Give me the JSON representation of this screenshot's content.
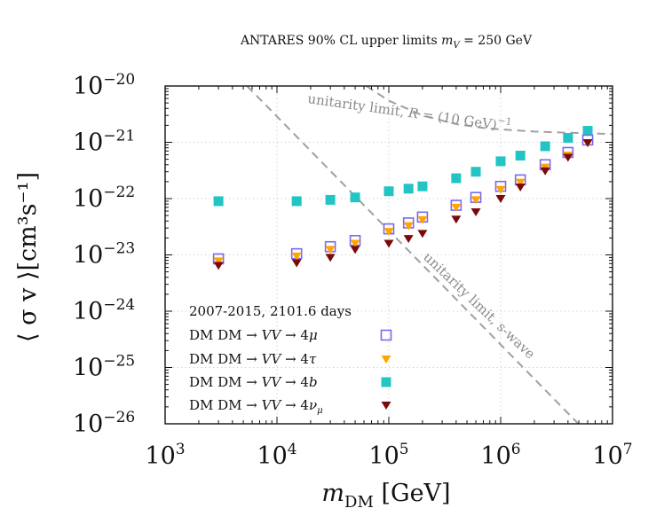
{
  "chart_data": {
    "type": "scatter",
    "title": "ANTARES 90% CL upper limits m_V = 250 GeV",
    "title_parts": {
      "text": "ANTARES 90% CL upper limits ",
      "var": "m",
      "sub": "V",
      "rest": " = 250 GeV"
    },
    "xlabel": "m_DM [GeV]",
    "xlabel_parts": {
      "var": "m",
      "sub": "DM",
      "unit": " [GeV]"
    },
    "ylabel": "⟨ σ v ⟩[cm³s⁻¹]",
    "xscale": "log",
    "yscale": "log",
    "xlim": [
      1000,
      10000000
    ],
    "ylim": [
      1e-26,
      1e-20
    ],
    "grid": true,
    "x_ticks": [
      {
        "value": 1000,
        "base": "10",
        "exp": "3"
      },
      {
        "value": 10000,
        "base": "10",
        "exp": "4"
      },
      {
        "value": 100000,
        "base": "10",
        "exp": "5"
      },
      {
        "value": 1000000,
        "base": "10",
        "exp": "6"
      },
      {
        "value": 10000000,
        "base": "10",
        "exp": "7"
      }
    ],
    "y_ticks": [
      {
        "value": 1e-20,
        "base": "10",
        "exp": "−20"
      },
      {
        "value": 1e-21,
        "base": "10",
        "exp": "−21"
      },
      {
        "value": 1e-22,
        "base": "10",
        "exp": "−22"
      },
      {
        "value": 1e-23,
        "base": "10",
        "exp": "−23"
      },
      {
        "value": 1e-24,
        "base": "10",
        "exp": "−24"
      },
      {
        "value": 1e-25,
        "base": "10",
        "exp": "−25"
      },
      {
        "value": 1e-26,
        "base": "10",
        "exp": "−26"
      }
    ],
    "legend": {
      "placement": "bottom-left",
      "header": "2007-2015, 2101.6 days"
    },
    "series": [
      {
        "name": "DM DM → VV → 4μ",
        "marker": "open-square",
        "color": "#7b68ee",
        "x": [
          3000,
          15000,
          30000,
          50000,
          100000,
          150000,
          200000,
          400000,
          600000,
          1000000,
          1500000,
          2500000,
          4000000,
          6000000
        ],
        "y": [
          8.5e-24,
          1.05e-23,
          1.4e-23,
          1.8e-23,
          2.9e-23,
          3.7e-23,
          4.7e-23,
          7.6e-23,
          1.05e-22,
          1.65e-22,
          2.15e-22,
          4e-22,
          6.6e-22,
          1.1e-21
        ]
      },
      {
        "name": "DM DM → VV → 4τ",
        "marker": "triangle-down",
        "color": "#ffa500",
        "x": [
          3000,
          15000,
          30000,
          50000,
          100000,
          150000,
          200000,
          400000,
          600000,
          1000000,
          1500000,
          2500000,
          4000000,
          6000000
        ],
        "y": [
          7.8e-24,
          9.5e-24,
          1.25e-23,
          1.6e-23,
          2.6e-23,
          3.3e-23,
          4.2e-23,
          7e-23,
          9.5e-23,
          1.45e-22,
          1.95e-22,
          3.6e-22,
          5.9e-22,
          9.8e-22
        ]
      },
      {
        "name": "DM DM → VV → 4b",
        "marker": "filled-square",
        "color": "#22c4c4",
        "x": [
          3000,
          15000,
          30000,
          50000,
          100000,
          150000,
          200000,
          400000,
          600000,
          1000000,
          1500000,
          2500000,
          4000000,
          6000000
        ],
        "y": [
          9e-23,
          9e-23,
          9.5e-23,
          1.05e-22,
          1.35e-22,
          1.5e-22,
          1.65e-22,
          2.3e-22,
          3e-22,
          4.6e-22,
          5.8e-22,
          8.5e-22,
          1.2e-21,
          1.6e-21
        ]
      },
      {
        "name": "DM DM → VV → 4ν_μ",
        "marker": "triangle-down",
        "color": "#7a0a0a",
        "x": [
          3000,
          15000,
          30000,
          50000,
          100000,
          150000,
          200000,
          400000,
          600000,
          1000000,
          1500000,
          2500000,
          4000000,
          6000000
        ],
        "y": [
          6.5e-24,
          7.2e-24,
          9e-24,
          1.25e-23,
          1.6e-23,
          1.95e-23,
          2.4e-23,
          4.3e-23,
          5.8e-23,
          1e-22,
          1.6e-22,
          3.1e-22,
          5.4e-22,
          9.8e-22
        ]
      }
    ],
    "legend_entries": [
      {
        "prefix": "DM DM → ",
        "vv": "VV",
        "arrow": " → 4",
        "particle": "μ",
        "sub": ""
      },
      {
        "prefix": "DM DM → ",
        "vv": "VV",
        "arrow": " → 4",
        "particle": "τ",
        "sub": ""
      },
      {
        "prefix": "DM DM → ",
        "vv": "VV",
        "arrow": " → 4",
        "particle": "b",
        "sub": ""
      },
      {
        "prefix": "DM DM → ",
        "vv": "VV",
        "arrow": " → 4",
        "particle": "ν",
        "sub": "μ"
      }
    ],
    "curves": [
      {
        "name": "unitarity limit, R = (10 GeV)^-1",
        "label_text": "unitarity limit, ",
        "label_var": "R",
        "label_rest": " = (10 GeV)",
        "label_exp": "−1",
        "style": "dashed",
        "color": "#a0a0a0",
        "x": [
          100000,
          200000,
          500000,
          1000000,
          2000000,
          4000000,
          7000000,
          10000000
        ],
        "y": [
          1e-20,
          4e-21,
          2.2e-21,
          1.7e-21,
          1.5e-21,
          1.45e-21,
          1.42e-21,
          1.4e-21
        ],
        "x_line": [
          63000,
          100000,
          200000,
          400000,
          700000,
          1000000,
          2000000,
          4000000,
          7000000,
          10000000
        ],
        "y_line": [
          1e-20,
          5.5e-21,
          3e-21,
          2.1e-21,
          1.8e-21,
          1.7e-21,
          1.55e-21,
          1.48e-21,
          1.43e-21,
          1.4e-21
        ]
      },
      {
        "name": "unitarity limit, s-wave",
        "label_text": "unitarity limit, s-wave",
        "style": "dashed",
        "color": "#a0a0a0",
        "x_line": [
          5400,
          4950000
        ],
        "y_line": [
          1e-20,
          1e-26
        ]
      }
    ]
  }
}
